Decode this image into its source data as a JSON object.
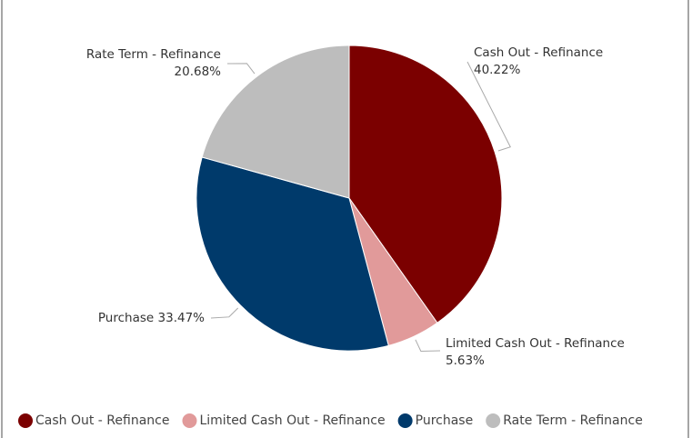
{
  "chart_data": {
    "type": "pie",
    "categories": [
      "Cash Out - Refinance",
      "Limited Cash Out - Refinance",
      "Purchase",
      "Rate Term - Refinance"
    ],
    "values": [
      40.22,
      5.63,
      33.47,
      20.68
    ],
    "value_labels": [
      "40.22%",
      "5.63%",
      "33.47%",
      "20.68%"
    ],
    "colors": [
      "#7b0000",
      "#e19a9a",
      "#003a6b",
      "#bdbdbd"
    ],
    "legend": "bottom"
  }
}
